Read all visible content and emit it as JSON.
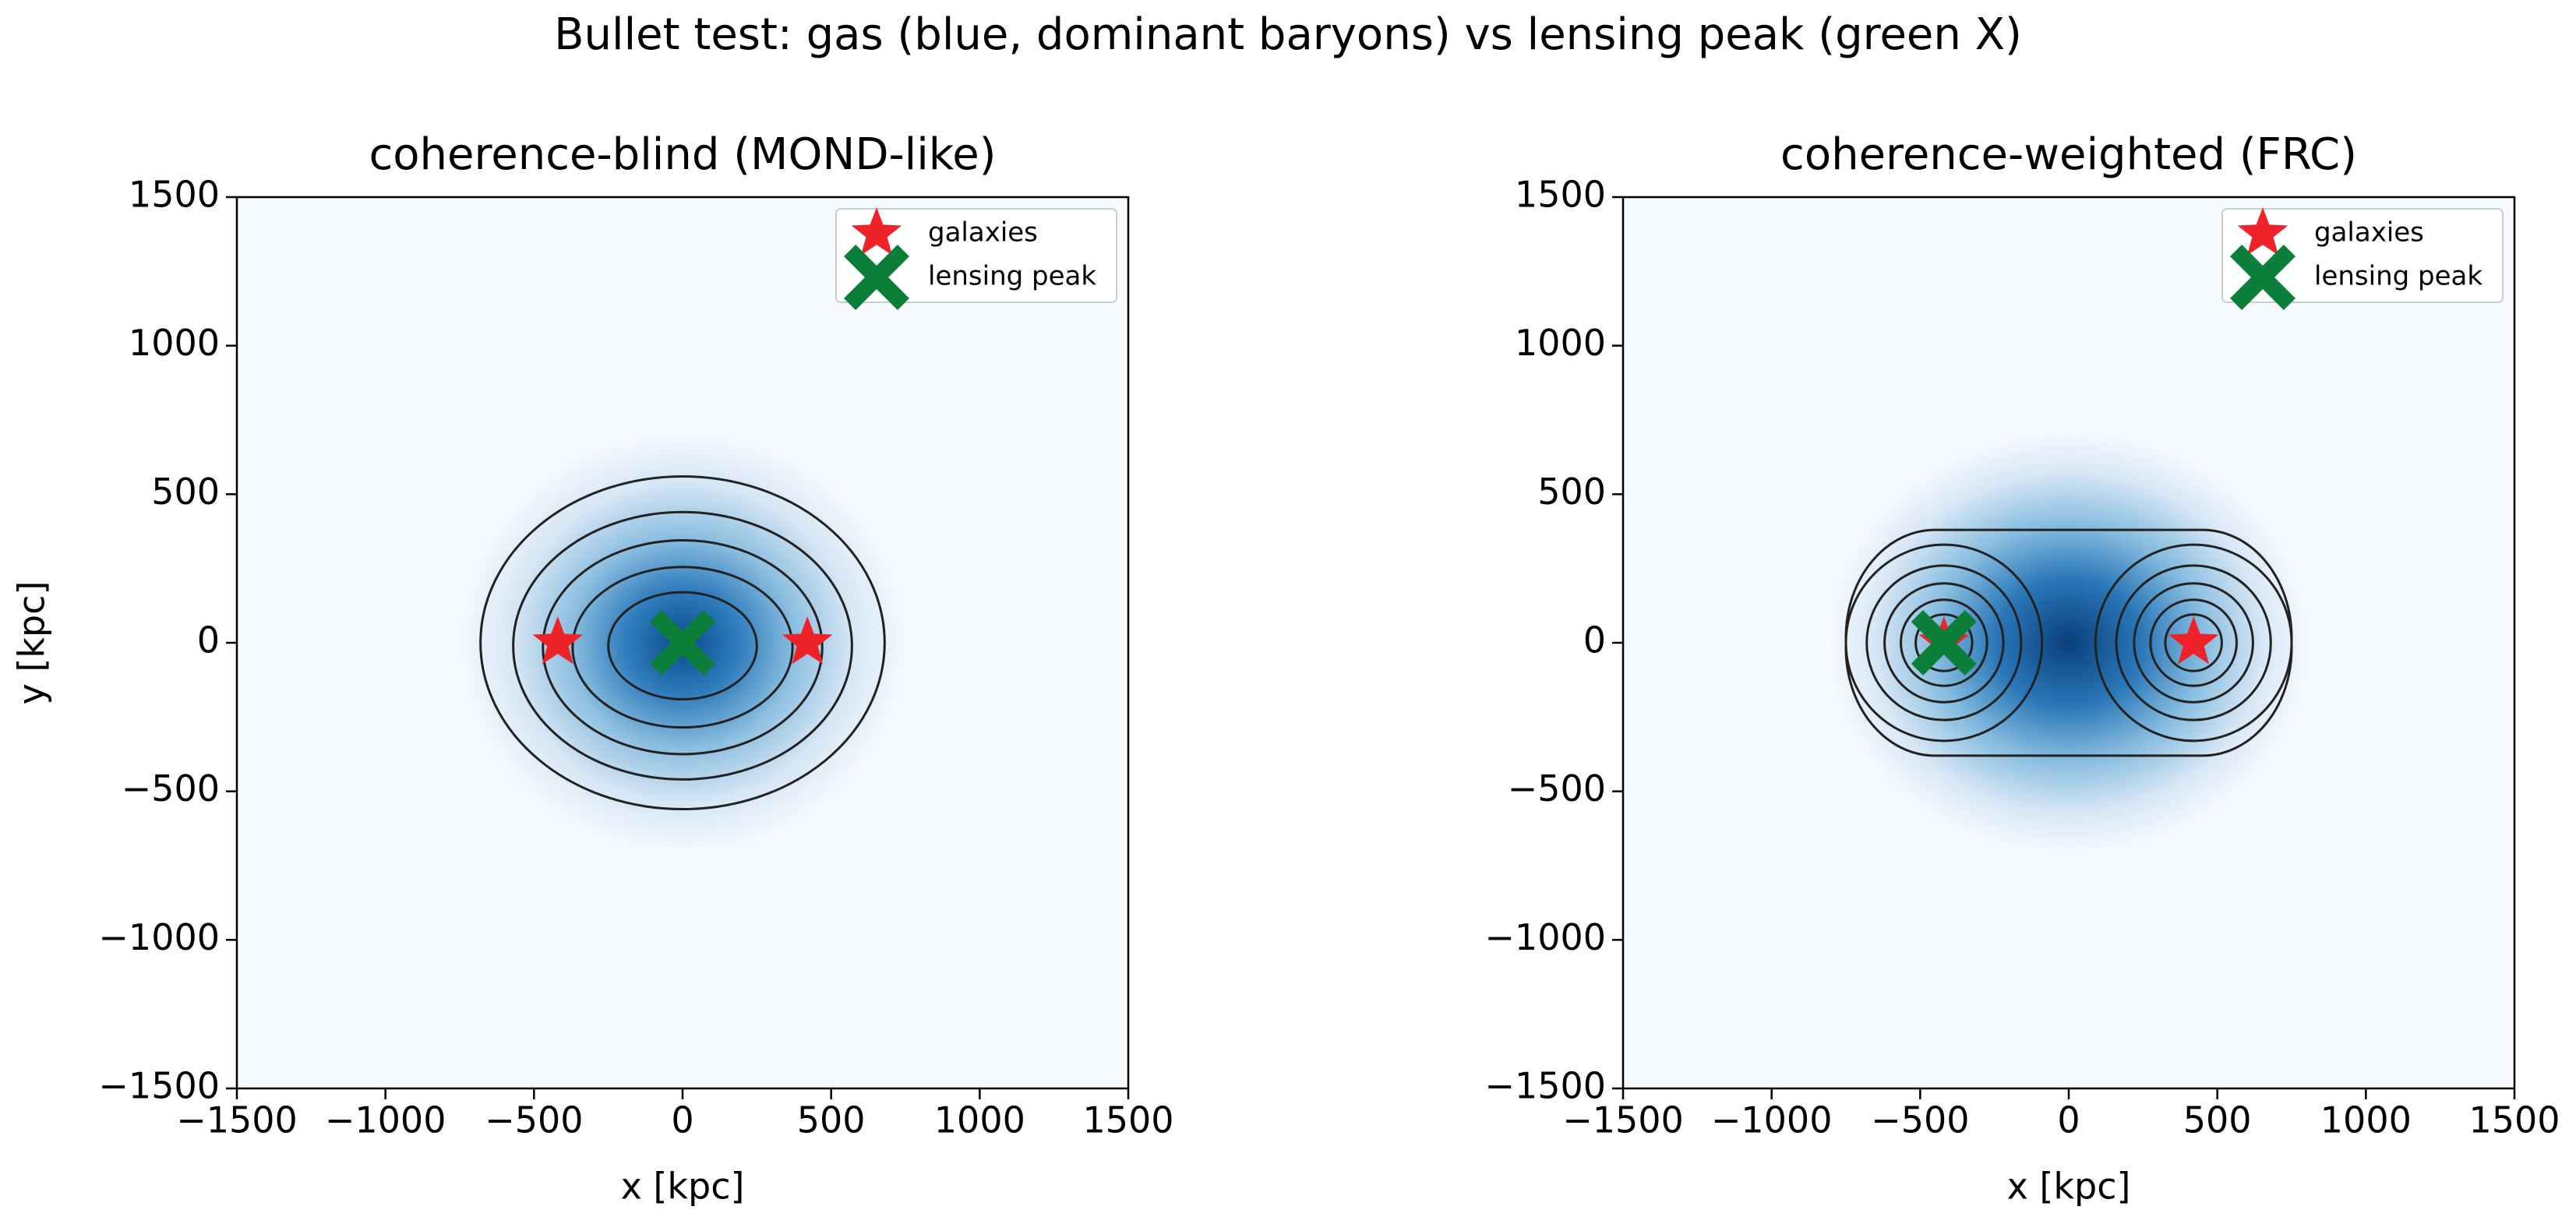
{
  "title": "Bullet test: gas (blue, dominant baryons) vs lensing peak (green X)",
  "chart_data": [
    {
      "type": "scatter",
      "title": "coherence-blind (MOND-like)",
      "xlabel": "x [kpc]",
      "ylabel": "y [kpc]",
      "xlim": [
        -1500,
        1500
      ],
      "ylim": [
        -1500,
        1500
      ],
      "xticks": [
        {
          "value": -1500,
          "label": "−1500"
        },
        {
          "value": -1000,
          "label": "−1000"
        },
        {
          "value": -500,
          "label": "−500"
        },
        0,
        500,
        1000,
        1500
      ],
      "yticks": [
        {
          "value": -1500,
          "label": "−1500"
        },
        {
          "value": -1000,
          "label": "−1000"
        },
        {
          "value": -500,
          "label": "−500"
        },
        0,
        500,
        1000,
        1500
      ],
      "legend": "upper right",
      "series": [
        {
          "name": "galaxies",
          "marker": "star",
          "color": "#ee2229",
          "x": [
            -420,
            420
          ],
          "y": [
            0,
            0
          ]
        },
        {
          "name": "lensing peak",
          "marker": "X",
          "color": "#0b7f3a",
          "x": [
            0
          ],
          "y": [
            0
          ]
        }
      ]
    },
    {
      "type": "scatter",
      "title": "coherence-weighted (FRC)",
      "xlabel": "x [kpc]",
      "xlim": [
        -1500,
        1500
      ],
      "ylim": [
        -1500,
        1500
      ],
      "xticks": [
        {
          "value": -1500,
          "label": "−1500"
        },
        {
          "value": -1000,
          "label": "−1000"
        },
        {
          "value": -500,
          "label": "−500"
        },
        0,
        500,
        1000,
        1500
      ],
      "yticks": [
        {
          "value": -1500,
          "label": "−1500"
        },
        {
          "value": -1000,
          "label": "−1000"
        },
        {
          "value": -500,
          "label": "−500"
        },
        0,
        500,
        1000,
        1500
      ],
      "legend": "upper right",
      "series": [
        {
          "name": "galaxies",
          "marker": "star",
          "color": "#ee2229",
          "x": [
            -420,
            420
          ],
          "y": [
            0,
            0
          ]
        },
        {
          "name": "lensing peak",
          "marker": "X",
          "color": "#0b7f3a",
          "x": [
            -420
          ],
          "y": [
            0
          ]
        }
      ]
    }
  ]
}
